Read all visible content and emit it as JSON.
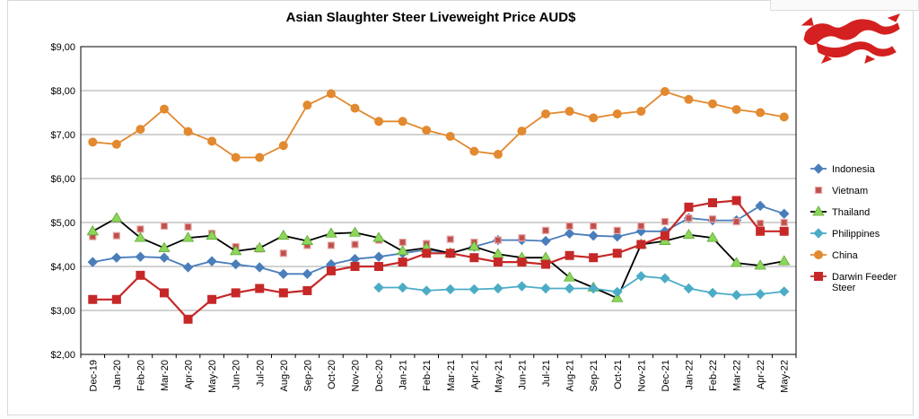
{
  "chart_data": {
    "type": "line",
    "title": "Asian Slaughter Steer Liveweight Price AUD$",
    "xlabel": "",
    "ylabel": "",
    "ylim": [
      2,
      9
    ],
    "yticks": [
      "$2,00",
      "$3,00",
      "$4,00",
      "$5,00",
      "$6,00",
      "$7,00",
      "$8,00",
      "$9,00"
    ],
    "grid": "horizontal",
    "legend_position": "right",
    "categories": [
      "Dec-19",
      "Jan-20",
      "Feb-20",
      "Mar-20",
      "Apr-20",
      "May-20",
      "Jun-20",
      "Jul-20",
      "Aug-20",
      "Sep-20",
      "Oct-20",
      "Nov-20",
      "Dec-20",
      "Jan-21",
      "Feb-21",
      "Mar-21",
      "Apr-21",
      "May-21",
      "Jun-21",
      "Jul-21",
      "Aug-21",
      "Sep-21",
      "Oct-21",
      "Nov-21",
      "Dec-21",
      "Jan-22",
      "Feb-22",
      "Mar-22",
      "Apr-22",
      "May-22"
    ],
    "series": [
      {
        "name": "Indonesia",
        "color": "#4a7ebb",
        "marker": "diamond",
        "values": [
          4.1,
          4.2,
          4.22,
          4.2,
          3.98,
          4.12,
          4.05,
          3.98,
          3.83,
          3.83,
          4.05,
          4.17,
          4.22,
          4.3,
          4.38,
          4.3,
          4.45,
          4.6,
          4.6,
          4.58,
          4.75,
          4.7,
          4.68,
          4.8,
          4.8,
          5.1,
          5.05,
          5.05,
          5.38,
          5.2
        ]
      },
      {
        "name": "Vietnam",
        "color": "#c0504d",
        "marker": "square-pink",
        "line": false,
        "values": [
          4.68,
          4.7,
          4.85,
          4.92,
          4.9,
          4.75,
          4.45,
          4.4,
          4.3,
          4.48,
          4.48,
          4.5,
          4.6,
          4.55,
          4.52,
          4.62,
          4.55,
          4.6,
          4.65,
          4.82,
          4.92,
          4.92,
          4.82,
          4.92,
          5.02,
          5.1,
          5.08,
          5.02,
          4.98,
          5.0
        ]
      },
      {
        "name": "Thailand",
        "color": "#000000",
        "marker": "triangle",
        "values": [
          4.8,
          5.1,
          4.65,
          4.42,
          4.65,
          4.7,
          4.35,
          4.42,
          4.7,
          4.58,
          4.75,
          4.77,
          4.65,
          4.35,
          4.42,
          4.3,
          4.45,
          4.28,
          4.2,
          4.2,
          3.75,
          3.52,
          3.28,
          4.5,
          4.58,
          4.72,
          4.65,
          4.08,
          4.02,
          4.12
        ]
      },
      {
        "name": "Philippines",
        "color": "#4bacc6",
        "marker": "diamond",
        "values": [
          null,
          null,
          null,
          null,
          null,
          null,
          null,
          null,
          null,
          null,
          null,
          null,
          3.52,
          3.52,
          3.45,
          3.48,
          3.48,
          3.5,
          3.55,
          3.5,
          3.5,
          3.5,
          3.42,
          3.78,
          3.73,
          3.5,
          3.4,
          3.35,
          3.37,
          3.43
        ]
      },
      {
        "name": "China",
        "color": "#e3892f",
        "marker": "circle",
        "values": [
          6.83,
          6.78,
          7.12,
          7.58,
          7.07,
          6.85,
          6.48,
          6.48,
          6.75,
          7.67,
          7.93,
          7.6,
          7.3,
          7.3,
          7.1,
          6.96,
          6.62,
          6.55,
          7.08,
          7.47,
          7.53,
          7.38,
          7.47,
          7.53,
          7.98,
          7.8,
          7.7,
          7.57,
          7.5,
          7.4
        ]
      },
      {
        "name": "Darwin Feeder Steer",
        "color": "#c62828",
        "marker": "square",
        "values": [
          3.25,
          3.25,
          3.8,
          3.4,
          2.8,
          3.25,
          3.4,
          3.5,
          3.4,
          3.45,
          3.9,
          4.0,
          4.0,
          4.1,
          4.3,
          4.3,
          4.2,
          4.1,
          4.1,
          4.05,
          4.25,
          4.2,
          4.3,
          4.5,
          4.7,
          5.35,
          5.45,
          5.5,
          4.8,
          4.8
        ]
      }
    ]
  },
  "logo": {
    "description_icon": "red-dragon-logo",
    "color": "#d42020"
  },
  "colors": {
    "gridline": "#a6a6a6",
    "plot_border": "#000000"
  }
}
